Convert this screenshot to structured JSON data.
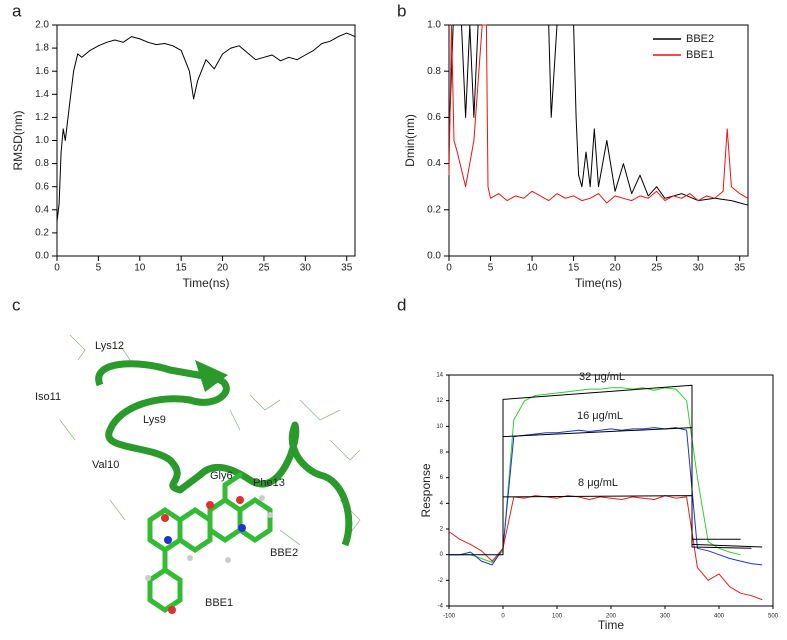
{
  "chart_data": [
    {
      "type": "line",
      "panel": "a",
      "xlabel": "Time(ns)",
      "ylabel": "RMSD(nm)",
      "xlim": [
        0,
        36
      ],
      "ylim": [
        0,
        2
      ],
      "xticks": [
        0,
        5,
        10,
        15,
        20,
        25,
        30,
        35
      ],
      "yticks": [
        {
          "value": 0,
          "label": "0.0"
        },
        0.2,
        0.4,
        0.6,
        0.8,
        {
          "value": 1,
          "label": "1.0"
        },
        1.2,
        1.4,
        1.6,
        1.8,
        {
          "value": 2,
          "label": "2.0"
        }
      ],
      "series": [
        {
          "color": "#000000",
          "x": [
            0,
            0.25,
            0.5,
            0.75,
            1,
            1.5,
            2,
            2.5,
            3,
            4,
            5,
            6,
            7,
            8,
            9,
            10,
            11,
            12,
            13,
            14,
            15,
            16,
            16.5,
            17,
            18,
            19,
            20,
            21,
            22,
            23,
            24,
            25,
            26,
            27,
            28,
            29,
            30,
            31,
            32,
            33,
            34,
            35,
            36
          ],
          "values": [
            0.3,
            0.45,
            0.9,
            1.1,
            1.0,
            1.3,
            1.6,
            1.75,
            1.72,
            1.78,
            1.82,
            1.85,
            1.87,
            1.85,
            1.9,
            1.88,
            1.85,
            1.83,
            1.84,
            1.82,
            1.78,
            1.6,
            1.36,
            1.52,
            1.7,
            1.62,
            1.75,
            1.8,
            1.82,
            1.76,
            1.7,
            1.72,
            1.74,
            1.69,
            1.72,
            1.7,
            1.74,
            1.78,
            1.84,
            1.86,
            1.9,
            1.93,
            1.9
          ]
        }
      ]
    },
    {
      "type": "line",
      "panel": "b",
      "xlabel": "Time(ns)",
      "ylabel": "Dmin(nm)",
      "xlim": [
        0,
        36
      ],
      "ylim": [
        0,
        1
      ],
      "xticks": [
        0,
        5,
        10,
        15,
        20,
        25,
        30,
        35
      ],
      "yticks": [
        {
          "value": 0,
          "label": "0.0"
        },
        0.2,
        0.4,
        0.6,
        0.8,
        {
          "value": 1,
          "label": "1.0"
        }
      ],
      "legend": "upper right",
      "series": [
        {
          "name": "BBE2",
          "color": "#000000",
          "x": [
            0,
            0.5,
            1,
            1.5,
            2,
            2.5,
            3,
            3.5,
            4,
            5,
            6,
            7,
            8,
            9,
            10,
            11,
            12,
            12.3,
            13,
            14,
            15,
            15.3,
            15.6,
            16,
            16.5,
            17,
            17.5,
            18,
            19,
            20,
            21,
            22,
            23,
            24,
            25,
            26,
            28,
            30,
            32,
            34,
            35,
            36
          ],
          "values": [
            0.5,
            1.0,
            1.0,
            1.0,
            0.6,
            1.0,
            0.6,
            1.0,
            1.0,
            1.0,
            1.0,
            1.0,
            1.0,
            1.0,
            1.0,
            1.0,
            1.0,
            0.6,
            1.0,
            1.0,
            1.0,
            0.6,
            0.35,
            0.3,
            0.45,
            0.3,
            0.55,
            0.3,
            0.5,
            0.28,
            0.4,
            0.27,
            0.35,
            0.26,
            0.3,
            0.25,
            0.27,
            0.24,
            0.25,
            0.24,
            0.23,
            0.22
          ]
        },
        {
          "name": "BBE1",
          "color": "#ee1111",
          "x": [
            0,
            0.3,
            0.6,
            1,
            2,
            3,
            4,
            4.5,
            4.7,
            5,
            6,
            7,
            8,
            9,
            10,
            11,
            12,
            13,
            14,
            15,
            16,
            17,
            18,
            19,
            20,
            21,
            22,
            23,
            24,
            25,
            26,
            27,
            28,
            29,
            30,
            31,
            32,
            33,
            33.5,
            34,
            35,
            36
          ],
          "values": [
            0.35,
            1.0,
            0.5,
            0.45,
            0.3,
            0.5,
            1.0,
            1.0,
            0.3,
            0.25,
            0.27,
            0.24,
            0.26,
            0.25,
            0.28,
            0.26,
            0.24,
            0.27,
            0.25,
            0.26,
            0.24,
            0.25,
            0.27,
            0.23,
            0.26,
            0.25,
            0.24,
            0.26,
            0.25,
            0.28,
            0.24,
            0.26,
            0.25,
            0.27,
            0.24,
            0.26,
            0.25,
            0.28,
            0.55,
            0.3,
            0.27,
            0.25
          ]
        }
      ]
    },
    {
      "type": "structure",
      "panel": "c",
      "annotations": [
        "Lys12",
        "Iso11",
        "Lys9",
        "Val10",
        "Gly6",
        "Phe13",
        "BBE2",
        "BBE1"
      ]
    },
    {
      "type": "line",
      "panel": "d",
      "xlabel": "Time",
      "ylabel": "Response",
      "xlim": [
        -100,
        500
      ],
      "ylim": [
        -4,
        14
      ],
      "xticks": [
        -100,
        0,
        100,
        200,
        300,
        400,
        500
      ],
      "yticks": [
        -4,
        -2,
        0,
        2,
        4,
        6,
        8,
        10,
        12,
        14
      ],
      "annotations": [
        "32 μg/mL",
        "16 μg/mL",
        "8 μg/mL"
      ],
      "series": [
        {
          "color": "#33cc33",
          "x": [
            -100,
            -80,
            -60,
            -40,
            -20,
            0,
            20,
            40,
            60,
            80,
            100,
            120,
            140,
            160,
            180,
            200,
            220,
            240,
            260,
            280,
            300,
            320,
            340,
            360,
            380,
            400,
            420,
            440,
            460,
            480
          ],
          "values": [
            0,
            0,
            0,
            -0.3,
            -0.6,
            0.3,
            10.5,
            12.0,
            12.4,
            12.5,
            12.6,
            12.7,
            12.8,
            12.9,
            12.9,
            13.0,
            13.0,
            12.9,
            13.0,
            12.8,
            13.0,
            12.9,
            12.0,
            6.0,
            1.0,
            0.5,
            0.2,
            0.0,
            null,
            null
          ]
        },
        {
          "color": "#2233cc",
          "x": [
            -100,
            -80,
            -60,
            -40,
            -20,
            0,
            20,
            40,
            60,
            80,
            100,
            120,
            140,
            160,
            180,
            200,
            220,
            240,
            260,
            280,
            300,
            320,
            340,
            360,
            380,
            400,
            420,
            440,
            460,
            480
          ],
          "values": [
            0,
            0,
            0.2,
            -0.5,
            -0.8,
            0.5,
            9.2,
            9.3,
            9.4,
            9.5,
            9.5,
            9.6,
            9.7,
            9.6,
            9.7,
            9.8,
            9.7,
            9.8,
            9.8,
            9.9,
            9.8,
            9.9,
            9.7,
            0.5,
            0.3,
            0.0,
            -0.3,
            -0.5,
            -0.7,
            -0.8
          ]
        },
        {
          "color": "#e02020",
          "x": [
            -100,
            -80,
            -60,
            -40,
            -20,
            0,
            20,
            40,
            60,
            80,
            100,
            120,
            140,
            160,
            180,
            200,
            220,
            240,
            260,
            280,
            300,
            320,
            340,
            360,
            380,
            400,
            420,
            440,
            460,
            480
          ],
          "values": [
            1.8,
            1.2,
            0.8,
            0.3,
            -0.5,
            0.5,
            4.5,
            4.4,
            4.6,
            4.5,
            4.4,
            4.6,
            4.5,
            4.3,
            4.5,
            4.4,
            4.3,
            4.5,
            4.4,
            4.3,
            4.6,
            4.4,
            4.5,
            -1.0,
            -2.0,
            -1.5,
            -2.5,
            -3.0,
            -3.2,
            -3.5
          ]
        },
        {
          "color": "#000000",
          "x": [
            -100,
            0,
            0,
            350,
            350,
            480
          ],
          "values": [
            0,
            0,
            12.1,
            13.2,
            0.8,
            0.6
          ]
        },
        {
          "color": "#000000",
          "x": [
            0,
            0,
            350,
            350,
            460
          ],
          "values": [
            0,
            9.2,
            9.9,
            0.6,
            0.5
          ]
        },
        {
          "color": "#000000",
          "x": [
            0,
            0,
            350,
            350,
            440
          ],
          "values": [
            0,
            4.5,
            4.6,
            1.2,
            1.2
          ]
        }
      ]
    }
  ]
}
